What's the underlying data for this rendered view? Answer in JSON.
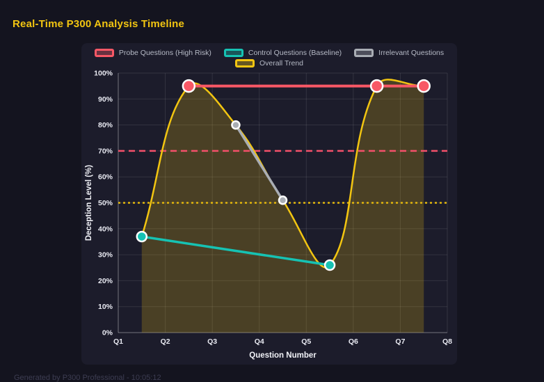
{
  "page": {
    "title": "Real-Time P300 Analysis Timeline",
    "title_color": "#f2c511",
    "background": "#14141f",
    "panel_background": "#1c1c2b",
    "footer": "Generated by P300 Professional - 10:05:12"
  },
  "chart_data": {
    "type": "line",
    "title": "",
    "xlabel": "Question Number",
    "ylabel": "Deception Level (%)",
    "x_categories": [
      "Q1",
      "Q2",
      "Q3",
      "Q4",
      "Q5",
      "Q6",
      "Q7",
      "Q8"
    ],
    "x_range": [
      1,
      8
    ],
    "y_range": [
      0,
      100
    ],
    "y_step": 10,
    "y_tick_suffix": "%",
    "grid": true,
    "legend_position": "top",
    "axis_text_color": "#e9eaf2",
    "grid_color": "rgba(255,255,255,0.10)",
    "axis_border_color": "rgba(255,255,255,0.32)",
    "series": [
      {
        "name": "Probe Questions (High Risk)",
        "color": "#f85866",
        "points": [
          {
            "x": 2.5,
            "y": 95
          },
          {
            "x": 6.5,
            "y": 95
          },
          {
            "x": 7.5,
            "y": 95
          }
        ],
        "line_width": 4,
        "point_radius": 8.5,
        "smooth": false
      },
      {
        "name": "Control Questions (Baseline)",
        "color": "#16c2b3",
        "points": [
          {
            "x": 1.5,
            "y": 37
          },
          {
            "x": 5.5,
            "y": 26
          }
        ],
        "line_width": 3.5,
        "point_radius": 7,
        "smooth": false
      },
      {
        "name": "Irrelevant Questions",
        "color": "#a9adb4",
        "points": [
          {
            "x": 3.5,
            "y": 80
          },
          {
            "x": 4.5,
            "y": 51
          }
        ],
        "line_width": 3.5,
        "point_radius": 5.5,
        "smooth": false
      },
      {
        "name": "Overall Trend",
        "color": "#f2c511",
        "fill_color": "rgba(242,197,17,0.22)",
        "points": [
          {
            "x": 1.5,
            "y": 37
          },
          {
            "x": 2.5,
            "y": 95
          },
          {
            "x": 3.5,
            "y": 80
          },
          {
            "x": 4.5,
            "y": 51
          },
          {
            "x": 5.5,
            "y": 26
          },
          {
            "x": 6.5,
            "y": 95
          },
          {
            "x": 7.5,
            "y": 95
          }
        ],
        "line_width": 2.5,
        "point_radius": 0,
        "smooth": true,
        "tension": 0.4
      }
    ],
    "thresholds": [
      {
        "name": "high-risk-threshold",
        "y": 70,
        "color": "#f4506a",
        "dash": "9 6",
        "width": 2.5
      },
      {
        "name": "baseline-threshold",
        "y": 50,
        "color": "#e2b60c",
        "dash": "3 4",
        "width": 2.5
      }
    ],
    "legend_rows": [
      [
        0,
        1,
        2
      ],
      [
        3
      ]
    ]
  }
}
